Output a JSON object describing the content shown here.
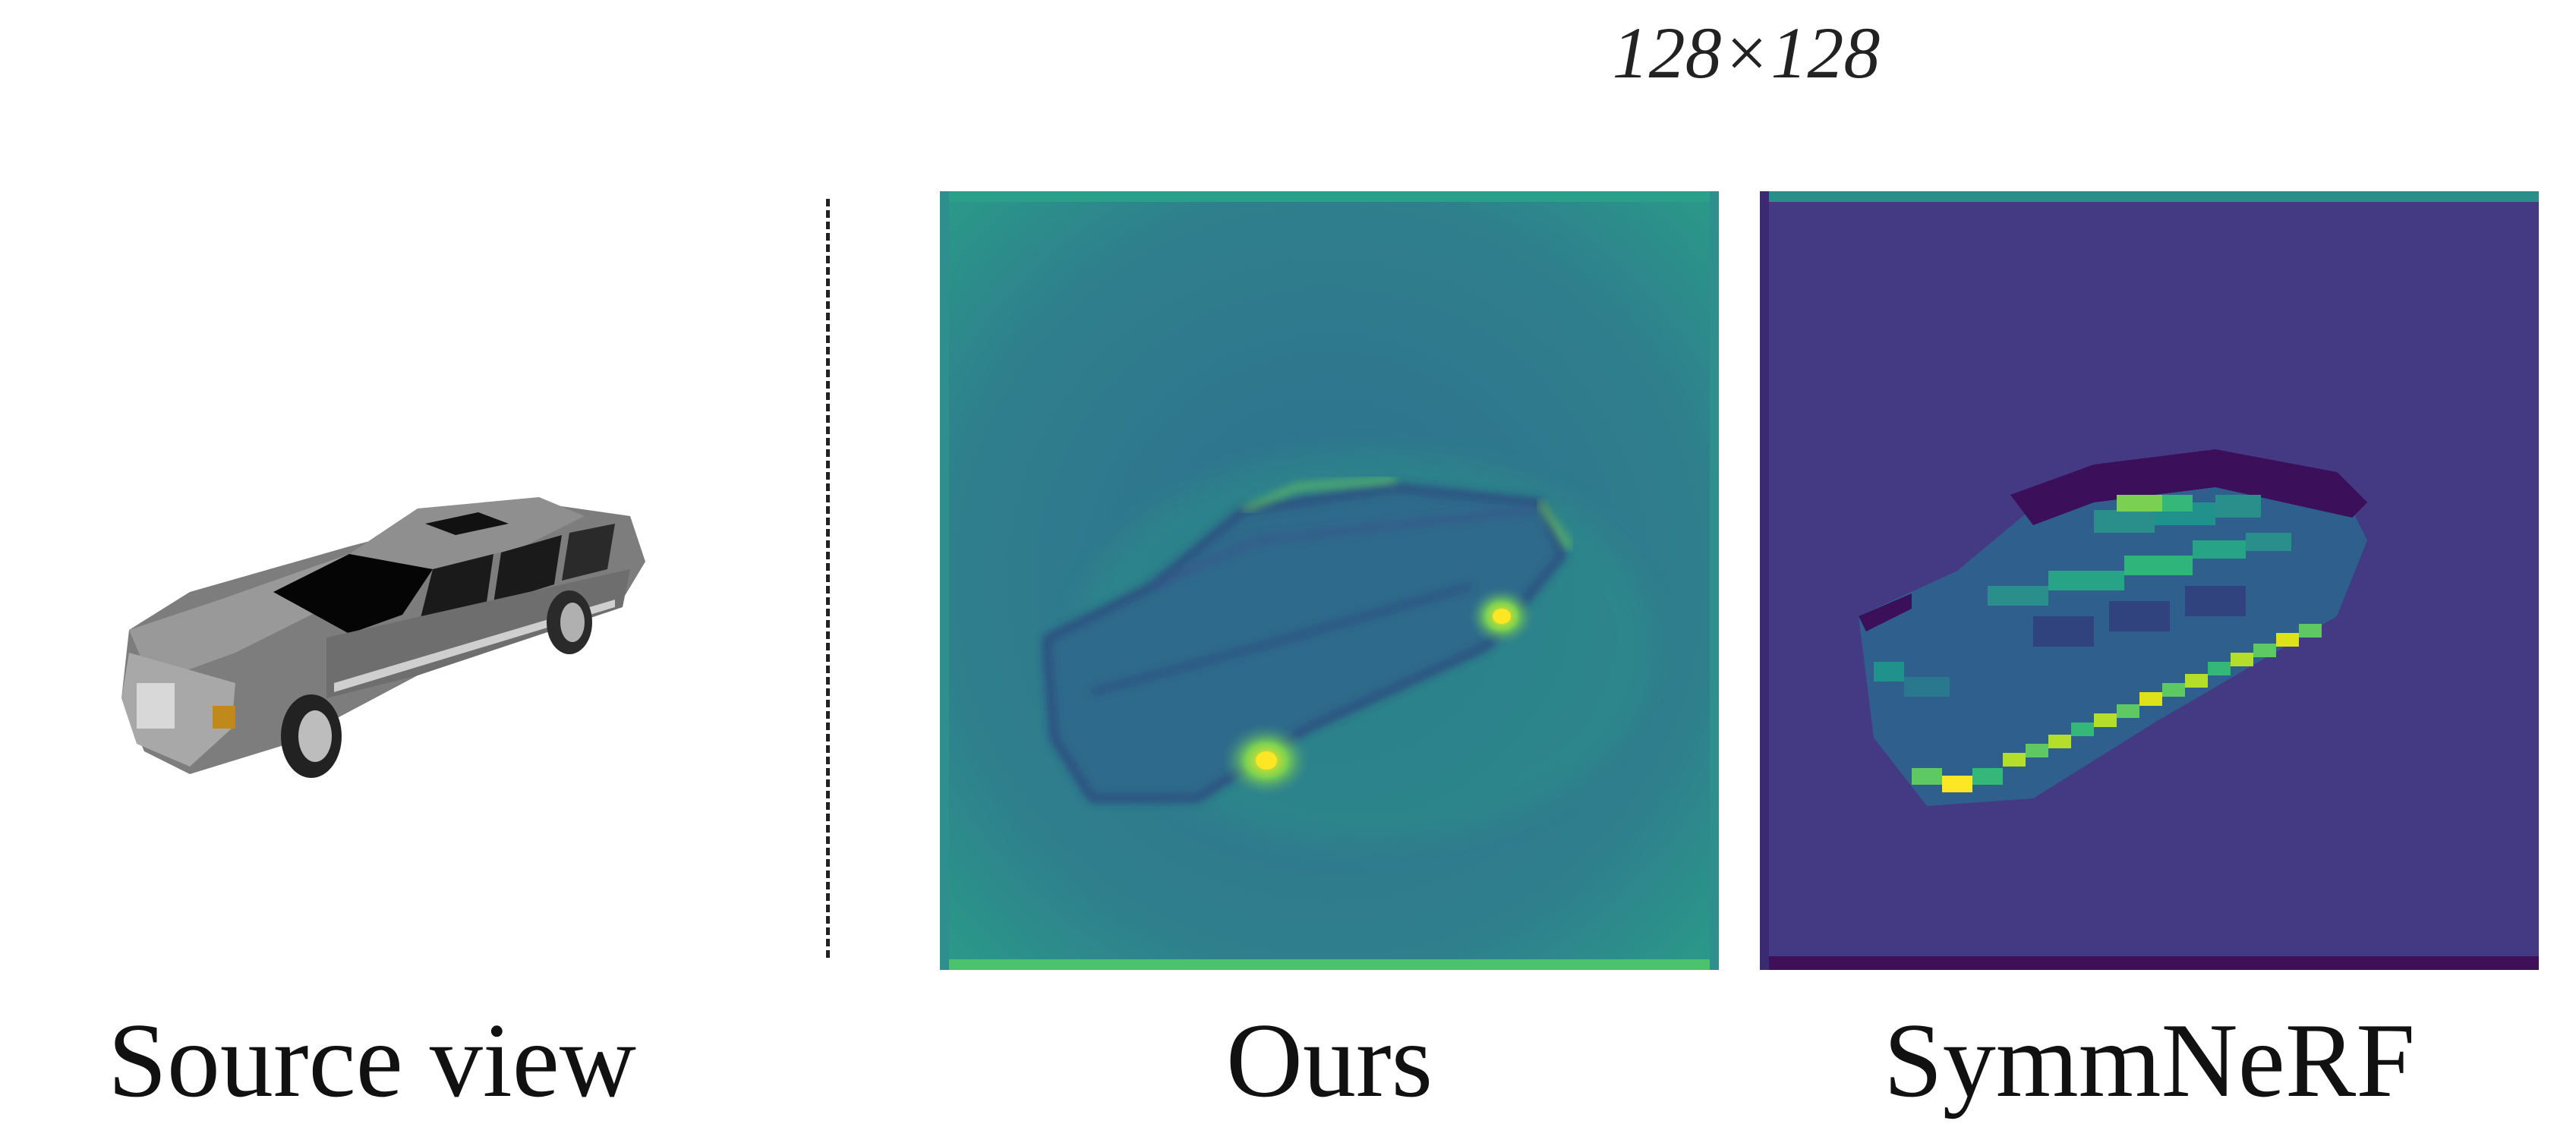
{
  "header": {
    "resolution": "128×128"
  },
  "captions": {
    "source": "Source view",
    "ours": "Ours",
    "symmnerf": "SymmNeRF"
  },
  "colors": {
    "viridis_purple": "#443983",
    "viridis_teal": "#2f7b8e",
    "viridis_green": "#35b779",
    "viridis_yellow": "#fde725",
    "car_gray": "#8a8a8a"
  }
}
